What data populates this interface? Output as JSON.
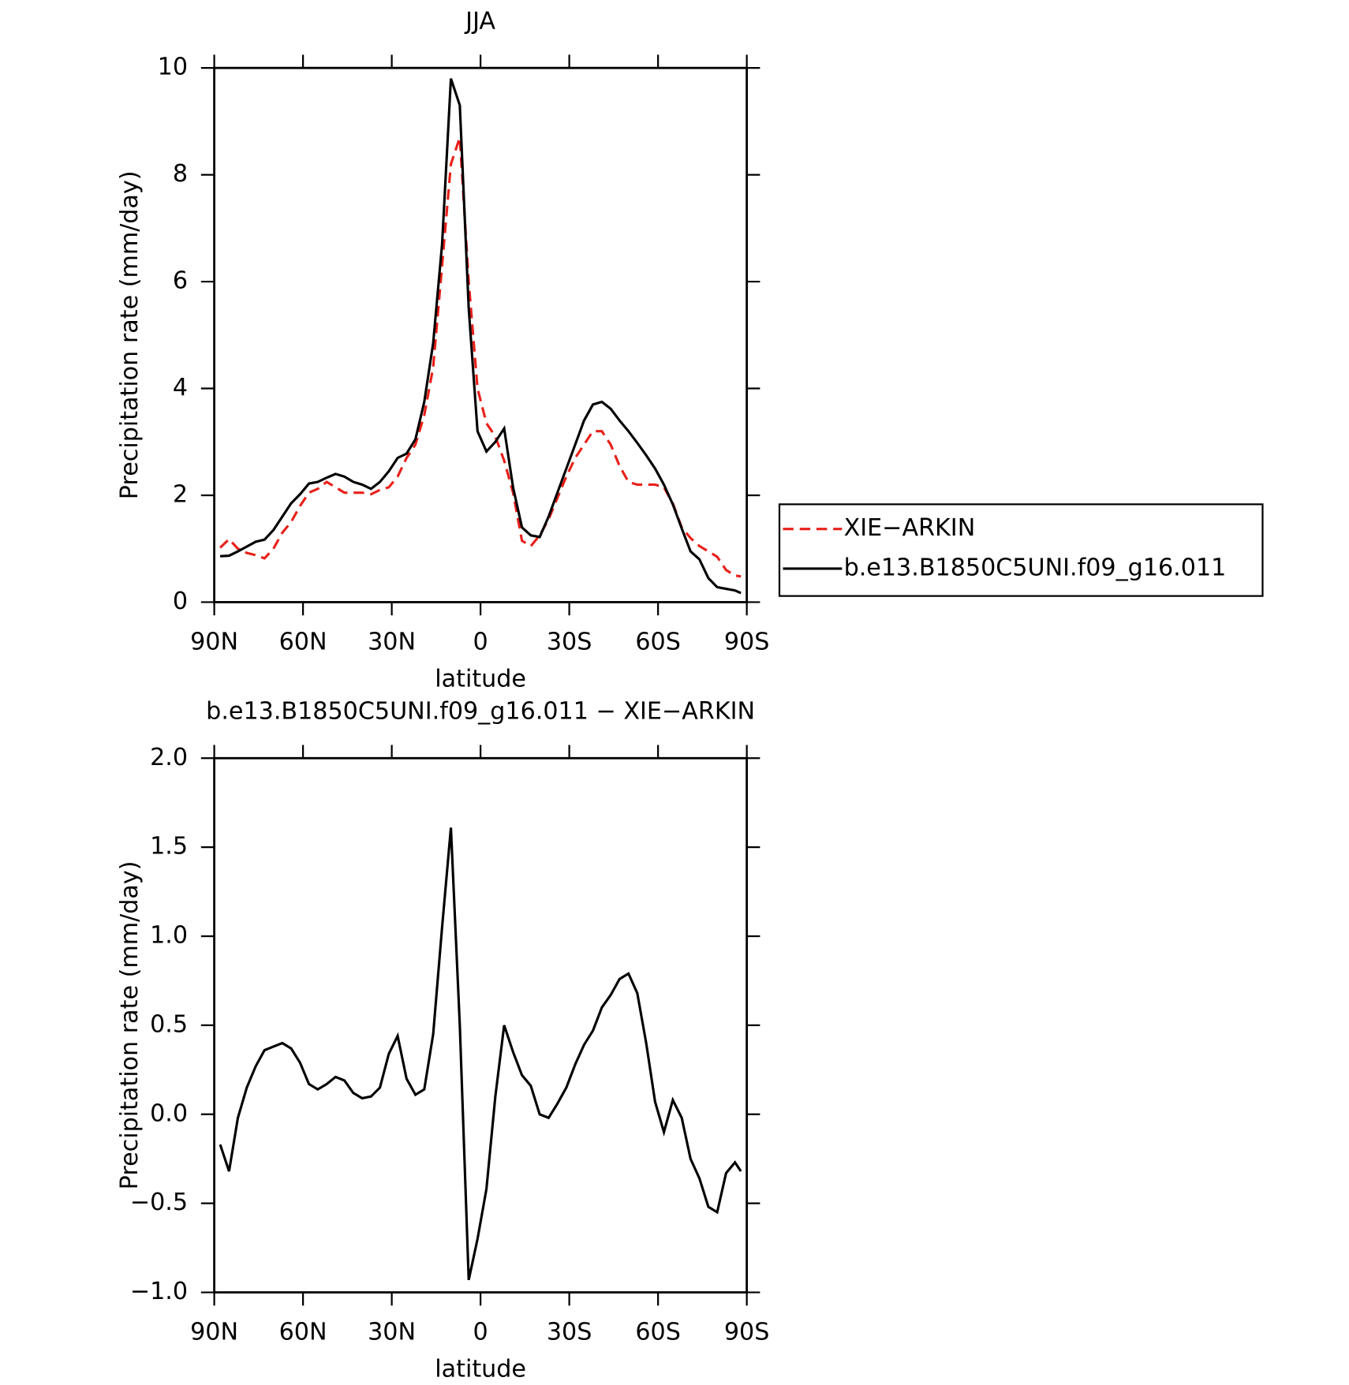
{
  "chart_data": [
    {
      "type": "line",
      "title": "JJA",
      "xlabel": "latitude",
      "ylabel": "Precipitation rate (mm/day)",
      "x": [
        88,
        85,
        82,
        79,
        76,
        73,
        70,
        67,
        64,
        61,
        58,
        55,
        52,
        49,
        46,
        43,
        40,
        37,
        34,
        31,
        28,
        25,
        22,
        19,
        16,
        13,
        10,
        7,
        4,
        1,
        -2,
        -5,
        -8,
        -11,
        -14,
        -17,
        -20,
        -23,
        -26,
        -29,
        -32,
        -35,
        -38,
        -41,
        -44,
        -47,
        -50,
        -53,
        -56,
        -59,
        -62,
        -65,
        -68,
        -71,
        -74,
        -77,
        -80,
        -83,
        -86,
        -88
      ],
      "xlim": [
        90,
        -90
      ],
      "xticks": [
        {
          "value": 90,
          "label": "90N"
        },
        {
          "value": 60,
          "label": "60N"
        },
        {
          "value": 30,
          "label": "30N"
        },
        0,
        {
          "value": -30,
          "label": "30S"
        },
        {
          "value": -60,
          "label": "60S"
        },
        {
          "value": -90,
          "label": "90S"
        }
      ],
      "ylim": [
        0,
        10
      ],
      "yticks": [
        0,
        2,
        4,
        6,
        8,
        10
      ],
      "legend": "outside right",
      "series": [
        {
          "name": "XIE−ARKIN",
          "color": "#e8201a",
          "line_style": "dashed",
          "values": [
            1.02,
            1.18,
            1.0,
            0.92,
            0.88,
            0.82,
            1.0,
            1.3,
            1.5,
            1.8,
            2.05,
            2.12,
            2.25,
            2.15,
            2.05,
            2.05,
            2.05,
            2.02,
            2.1,
            2.15,
            2.35,
            2.7,
            2.95,
            3.5,
            4.4,
            6.3,
            8.2,
            8.7,
            6.0,
            4.0,
            3.35,
            3.1,
            2.65,
            2.05,
            1.15,
            1.05,
            1.25,
            1.55,
            1.95,
            2.35,
            2.7,
            2.95,
            3.2,
            3.2,
            2.95,
            2.55,
            2.25,
            2.2,
            2.2,
            2.2,
            2.15,
            1.85,
            1.4,
            1.2,
            1.05,
            0.95,
            0.85,
            0.6,
            0.5,
            0.48
          ]
        },
        {
          "name": "b.e13.B1850C5UNI.f09_g16.011",
          "color": "#000000",
          "line_style": "solid",
          "values": [
            0.86,
            0.87,
            0.95,
            1.04,
            1.13,
            1.17,
            1.35,
            1.6,
            1.85,
            2.02,
            2.22,
            2.25,
            2.33,
            2.4,
            2.35,
            2.25,
            2.2,
            2.12,
            2.25,
            2.45,
            2.7,
            2.78,
            3.05,
            3.75,
            4.85,
            6.7,
            9.8,
            9.3,
            5.5,
            3.2,
            2.82,
            3.0,
            3.25,
            2.15,
            1.4,
            1.25,
            1.22,
            1.6,
            2.05,
            2.5,
            2.95,
            3.4,
            3.7,
            3.75,
            3.62,
            3.4,
            3.2,
            2.98,
            2.75,
            2.5,
            2.2,
            1.83,
            1.38,
            0.95,
            0.8,
            0.45,
            0.28,
            0.25,
            0.22,
            0.17
          ]
        }
      ]
    },
    {
      "type": "line",
      "title": "b.e13.B1850C5UNI.f09_g16.011 − XIE−ARKIN",
      "xlabel": "latitude",
      "ylabel": "Precipitation rate (mm/day)",
      "x": [
        88,
        85,
        82,
        79,
        76,
        73,
        70,
        67,
        64,
        61,
        58,
        55,
        52,
        49,
        46,
        43,
        40,
        37,
        34,
        31,
        28,
        25,
        22,
        19,
        16,
        13,
        10,
        7,
        4,
        1,
        -2,
        -5,
        -8,
        -11,
        -14,
        -17,
        -20,
        -23,
        -26,
        -29,
        -32,
        -35,
        -38,
        -41,
        -44,
        -47,
        -50,
        -53,
        -56,
        -59,
        -62,
        -65,
        -68,
        -71,
        -74,
        -77,
        -80,
        -83,
        -86,
        -88
      ],
      "xlim": [
        90,
        -90
      ],
      "xticks": [
        {
          "value": 90,
          "label": "90N"
        },
        {
          "value": 60,
          "label": "60N"
        },
        {
          "value": 30,
          "label": "30N"
        },
        0,
        {
          "value": -30,
          "label": "30S"
        },
        {
          "value": -60,
          "label": "60S"
        },
        {
          "value": -90,
          "label": "90S"
        }
      ],
      "ylim": [
        -1,
        2
      ],
      "yticks": [
        {
          "value": -1,
          "label": "−1.0"
        },
        {
          "value": -0.5,
          "label": "−0.5"
        },
        {
          "value": 0,
          "label": "0.0"
        },
        0.5,
        {
          "value": 1,
          "label": "1.0"
        },
        1.5,
        {
          "value": 2,
          "label": "2.0"
        }
      ],
      "color": "#000000",
      "values": [
        -0.17,
        -0.32,
        -0.02,
        0.15,
        0.27,
        0.36,
        0.38,
        0.4,
        0.37,
        0.29,
        0.17,
        0.14,
        0.17,
        0.21,
        0.19,
        0.12,
        0.09,
        0.1,
        0.15,
        0.34,
        0.44,
        0.2,
        0.11,
        0.14,
        0.45,
        1.05,
        1.61,
        0.5,
        -0.93,
        -0.7,
        -0.42,
        0.1,
        0.5,
        0.35,
        0.22,
        0.16,
        0.0,
        -0.02,
        0.06,
        0.15,
        0.28,
        0.39,
        0.47,
        0.6,
        0.67,
        0.76,
        0.79,
        0.68,
        0.4,
        0.07,
        -0.1,
        0.08,
        -0.02,
        -0.25,
        -0.36,
        -0.52,
        -0.55,
        -0.33,
        -0.27,
        -0.32
      ]
    }
  ]
}
